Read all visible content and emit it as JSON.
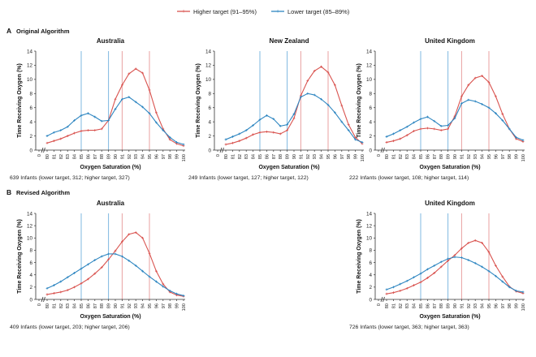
{
  "legend": {
    "items": [
      {
        "label": "Higher target (91–95%)",
        "color": "#d9534f"
      },
      {
        "label": "Lower target (85–89%)",
        "color": "#2e86c1"
      }
    ]
  },
  "sections": [
    {
      "letter": "A",
      "title": "Original Algorithm"
    },
    {
      "letter": "B",
      "title": "Revised Algorithm"
    }
  ],
  "axis": {
    "ylabel_line1": "Time Receiving Oxygen",
    "ylabel_line2": "(%)",
    "xlabel": "Oxygen Saturation (%)",
    "yticks": [
      "0",
      "2",
      "4",
      "6",
      "8",
      "10",
      "12",
      "14"
    ],
    "xticks": [
      "0",
      "80",
      "81",
      "82",
      "83",
      "84",
      "85",
      "86",
      "87",
      "88",
      "89",
      "90",
      "91",
      "92",
      "93",
      "94",
      "95",
      "96",
      "97",
      "98",
      "99",
      "100"
    ]
  },
  "chart_data": [
    {
      "type": "line",
      "title": "Australia",
      "caption": "639 Infants (lower target, 312; higher target, 327)",
      "ylim": [
        0,
        14
      ],
      "x": [
        80,
        81,
        82,
        83,
        84,
        85,
        86,
        87,
        88,
        89,
        90,
        91,
        92,
        93,
        94,
        95,
        96,
        97,
        98,
        99,
        100
      ],
      "series": [
        {
          "name": "Higher target (91–95%)",
          "color": "#d9534f",
          "values": [
            1.0,
            1.3,
            1.6,
            2.0,
            2.4,
            2.7,
            2.8,
            2.8,
            3.0,
            4.2,
            7.2,
            9.2,
            10.8,
            11.5,
            10.9,
            8.5,
            5.3,
            3.0,
            1.5,
            0.9,
            0.6
          ]
        },
        {
          "name": "Lower target (85–89%)",
          "color": "#2e86c1",
          "values": [
            2.0,
            2.5,
            2.8,
            3.3,
            4.2,
            4.9,
            5.2,
            4.7,
            4.1,
            4.2,
            5.8,
            7.2,
            7.5,
            6.8,
            6.1,
            5.2,
            3.9,
            2.8,
            1.8,
            1.1,
            0.8
          ]
        }
      ]
    },
    {
      "type": "line",
      "title": "New Zealand",
      "caption": "249 Infants (lower target, 127; higher target, 122)",
      "ylim": [
        0,
        14
      ],
      "x": [
        80,
        81,
        82,
        83,
        84,
        85,
        86,
        87,
        88,
        89,
        90,
        91,
        92,
        93,
        94,
        95,
        96,
        97,
        98,
        99,
        100
      ],
      "series": [
        {
          "name": "Higher target (91–95%)",
          "color": "#d9534f",
          "values": [
            0.8,
            1.0,
            1.3,
            1.7,
            2.2,
            2.5,
            2.6,
            2.5,
            2.3,
            2.8,
            4.5,
            7.7,
            9.8,
            11.2,
            11.8,
            11.0,
            9.2,
            6.3,
            3.6,
            1.8,
            0.9
          ]
        },
        {
          "name": "Lower target (85–89%)",
          "color": "#2e86c1",
          "values": [
            1.5,
            1.9,
            2.3,
            2.8,
            3.5,
            4.3,
            4.9,
            4.4,
            3.4,
            3.6,
            5.1,
            7.5,
            8.0,
            7.8,
            7.2,
            6.4,
            5.3,
            4.0,
            2.8,
            1.5,
            1.1
          ]
        }
      ]
    },
    {
      "type": "line",
      "title": "United Kingdom",
      "caption": "222 Infants (lower target, 108; higher target, 114)",
      "ylim": [
        0,
        14
      ],
      "x": [
        80,
        81,
        82,
        83,
        84,
        85,
        86,
        87,
        88,
        89,
        90,
        91,
        92,
        93,
        94,
        95,
        96,
        97,
        98,
        99,
        100
      ],
      "series": [
        {
          "name": "Higher target (91–95%)",
          "color": "#d9534f",
          "values": [
            1.1,
            1.3,
            1.6,
            2.1,
            2.7,
            3.0,
            3.1,
            3.0,
            2.8,
            3.0,
            4.8,
            7.6,
            9.2,
            10.2,
            10.5,
            9.6,
            7.6,
            5.1,
            3.0,
            1.6,
            1.2
          ]
        },
        {
          "name": "Lower target (85–89%)",
          "color": "#2e86c1",
          "values": [
            1.9,
            2.3,
            2.8,
            3.3,
            3.9,
            4.4,
            4.7,
            4.1,
            3.4,
            3.5,
            4.5,
            6.6,
            7.1,
            6.9,
            6.5,
            6.0,
            5.2,
            4.2,
            3.0,
            1.8,
            1.4
          ]
        }
      ]
    },
    {
      "type": "line",
      "title": "Australia",
      "caption": "409 Infants (lower target, 203; higher target, 206)",
      "ylim": [
        0,
        14
      ],
      "x": [
        80,
        81,
        82,
        83,
        84,
        85,
        86,
        87,
        88,
        89,
        90,
        91,
        92,
        93,
        94,
        95,
        96,
        97,
        98,
        99,
        100
      ],
      "series": [
        {
          "name": "Higher target (91–95%)",
          "color": "#d9534f",
          "values": [
            0.8,
            1.0,
            1.2,
            1.5,
            2.0,
            2.6,
            3.3,
            4.2,
            5.2,
            6.5,
            7.9,
            9.4,
            10.6,
            10.9,
            10.0,
            7.5,
            4.6,
            2.5,
            1.2,
            0.7,
            0.5
          ]
        },
        {
          "name": "Lower target (85–89%)",
          "color": "#2e86c1",
          "values": [
            1.8,
            2.3,
            2.9,
            3.6,
            4.3,
            5.0,
            5.7,
            6.4,
            7.0,
            7.4,
            7.4,
            7.0,
            6.3,
            5.5,
            4.6,
            3.7,
            2.9,
            2.1,
            1.4,
            0.9,
            0.6
          ]
        }
      ]
    },
    {
      "type": "line",
      "title": "United Kingdom",
      "caption": "726 Infants (lower target, 363; higher target, 363)",
      "ylim": [
        0,
        14
      ],
      "x": [
        80,
        81,
        82,
        83,
        84,
        85,
        86,
        87,
        88,
        89,
        90,
        91,
        92,
        93,
        94,
        95,
        96,
        97,
        98,
        99,
        100
      ],
      "series": [
        {
          "name": "Higher target (91–95%)",
          "color": "#d9534f",
          "values": [
            0.9,
            1.1,
            1.4,
            1.8,
            2.3,
            2.8,
            3.5,
            4.3,
            5.3,
            6.3,
            7.2,
            8.3,
            9.2,
            9.6,
            9.2,
            7.7,
            5.5,
            3.7,
            2.1,
            1.3,
            1.0
          ]
        },
        {
          "name": "Lower target (85–89%)",
          "color": "#2e86c1",
          "values": [
            1.6,
            2.0,
            2.5,
            3.0,
            3.6,
            4.2,
            4.9,
            5.5,
            6.1,
            6.6,
            6.9,
            6.8,
            6.4,
            5.9,
            5.3,
            4.6,
            3.8,
            2.9,
            2.0,
            1.4,
            1.2
          ]
        }
      ]
    }
  ]
}
